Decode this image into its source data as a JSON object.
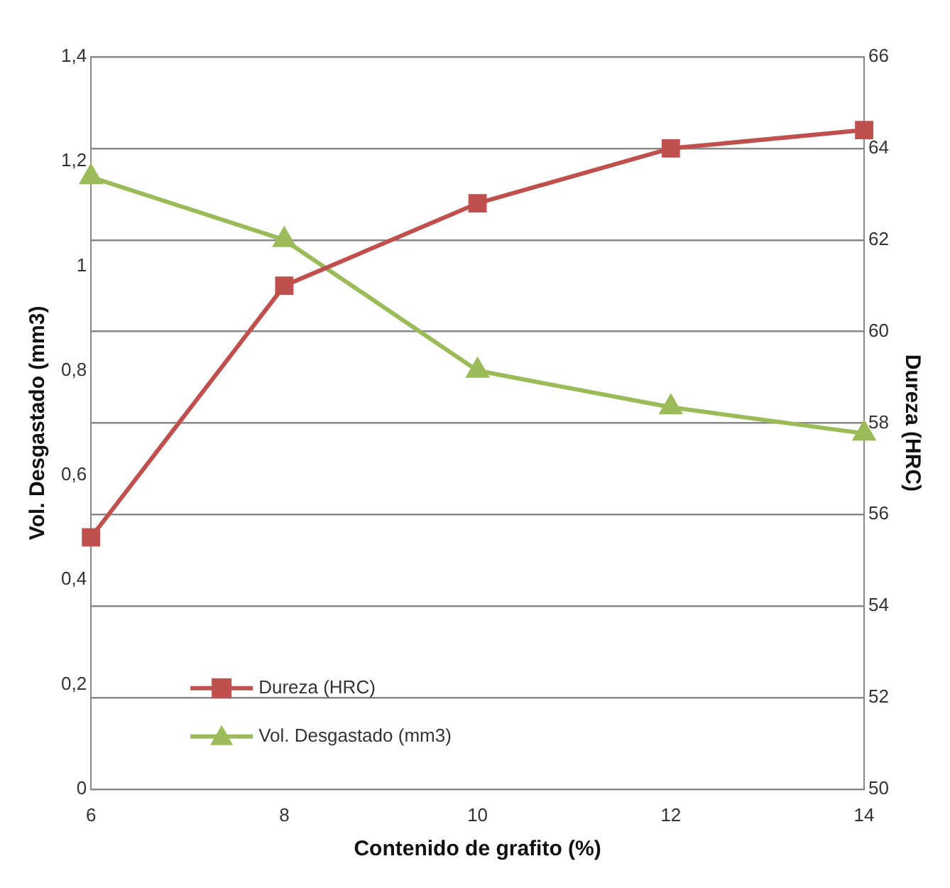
{
  "chart_data": {
    "type": "line",
    "xlabel": "Contenido de grafito (%)",
    "ylabel": "Vol. Desgastado (mm3)",
    "y2label": "Dureza (HRC)",
    "categories": [
      "6",
      "8",
      "10",
      "12",
      "14"
    ],
    "series": [
      {
        "name": "Dureza (HRC)",
        "color": "#c0504d",
        "marker": "square",
        "axis": "y2",
        "values": [
          55.5,
          61,
          62.8,
          64,
          64.4
        ]
      },
      {
        "name": "Vol. Desgastado (mm3)",
        "color": "#9bbb59",
        "marker": "triangle",
        "axis": "y",
        "values": [
          1.17,
          1.05,
          0.8,
          0.73,
          0.68
        ]
      }
    ],
    "ylim": [
      0,
      1.4
    ],
    "yticks": [
      0,
      {
        "value": 0.2,
        "label": "0,2"
      },
      {
        "value": 0.4,
        "label": "0,4"
      },
      {
        "value": 0.6,
        "label": "0,6"
      },
      {
        "value": 0.8,
        "label": "0,8"
      },
      1,
      {
        "value": 1.2,
        "label": "1,2"
      },
      {
        "value": 1.4,
        "label": "1,4"
      }
    ],
    "y2lim": [
      50,
      66
    ],
    "y2ticks": [
      50,
      52,
      54,
      56,
      58,
      60,
      62,
      64,
      66
    ],
    "grid": "y2",
    "legend": "bottom left",
    "line_style": "solid"
  }
}
